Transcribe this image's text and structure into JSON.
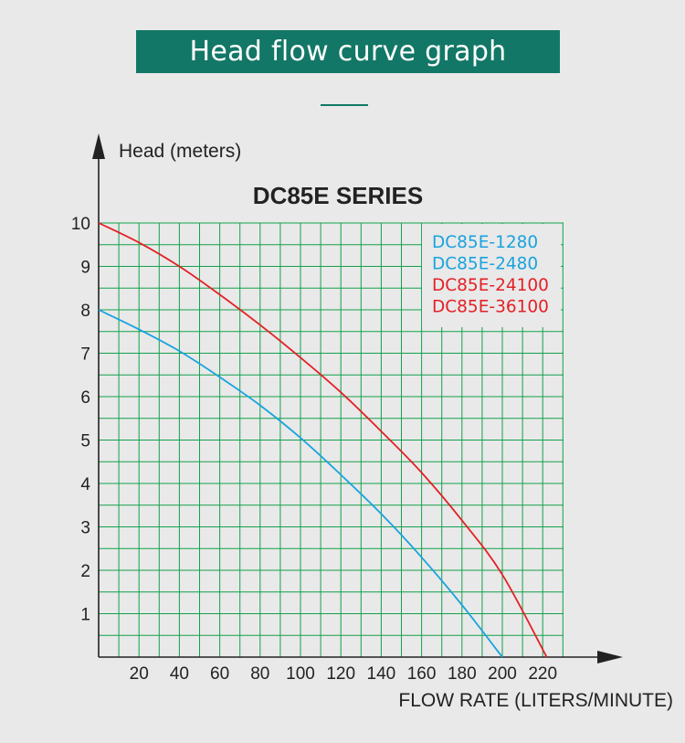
{
  "page": {
    "banner_title": "Head flow curve graph"
  },
  "chart_data": {
    "type": "line",
    "title": "DC85E SERIES",
    "ylabel": "Head (meters)",
    "xlabel": "FLOW RATE (LITERS/MINUTE)",
    "xlim": [
      0,
      230
    ],
    "ylim": [
      0,
      10.5
    ],
    "grid": true,
    "legend_position": "top-right",
    "x_ticks": [
      20,
      40,
      60,
      80,
      100,
      120,
      140,
      160,
      180,
      200,
      220
    ],
    "y_ticks": [
      1,
      2,
      3,
      4,
      5,
      6,
      7,
      8,
      9,
      10
    ],
    "legend": [
      {
        "label": "DC85E-1280",
        "color": "#1aa3de"
      },
      {
        "label": "DC85E-2480",
        "color": "#1aa3de"
      },
      {
        "label": "DC85E-24100",
        "color": "#e32126"
      },
      {
        "label": "DC85E-36100",
        "color": "#e32126"
      }
    ],
    "series": [
      {
        "color": "#1aa3de",
        "x": [
          0,
          20,
          40,
          60,
          80,
          100,
          120,
          140,
          160,
          180,
          200
        ],
        "y": [
          8.0,
          7.55,
          7.05,
          6.45,
          5.8,
          5.05,
          4.2,
          3.3,
          2.3,
          1.2,
          0
        ]
      },
      {
        "color": "#e32126",
        "x": [
          0,
          20,
          40,
          60,
          80,
          100,
          120,
          140,
          160,
          180,
          200,
          222
        ],
        "y": [
          10.0,
          9.55,
          9.0,
          8.35,
          7.65,
          6.9,
          6.1,
          5.2,
          4.25,
          3.15,
          1.9,
          0
        ]
      }
    ],
    "colors": {
      "grid": "#13a14b",
      "axis": "#222222"
    }
  }
}
